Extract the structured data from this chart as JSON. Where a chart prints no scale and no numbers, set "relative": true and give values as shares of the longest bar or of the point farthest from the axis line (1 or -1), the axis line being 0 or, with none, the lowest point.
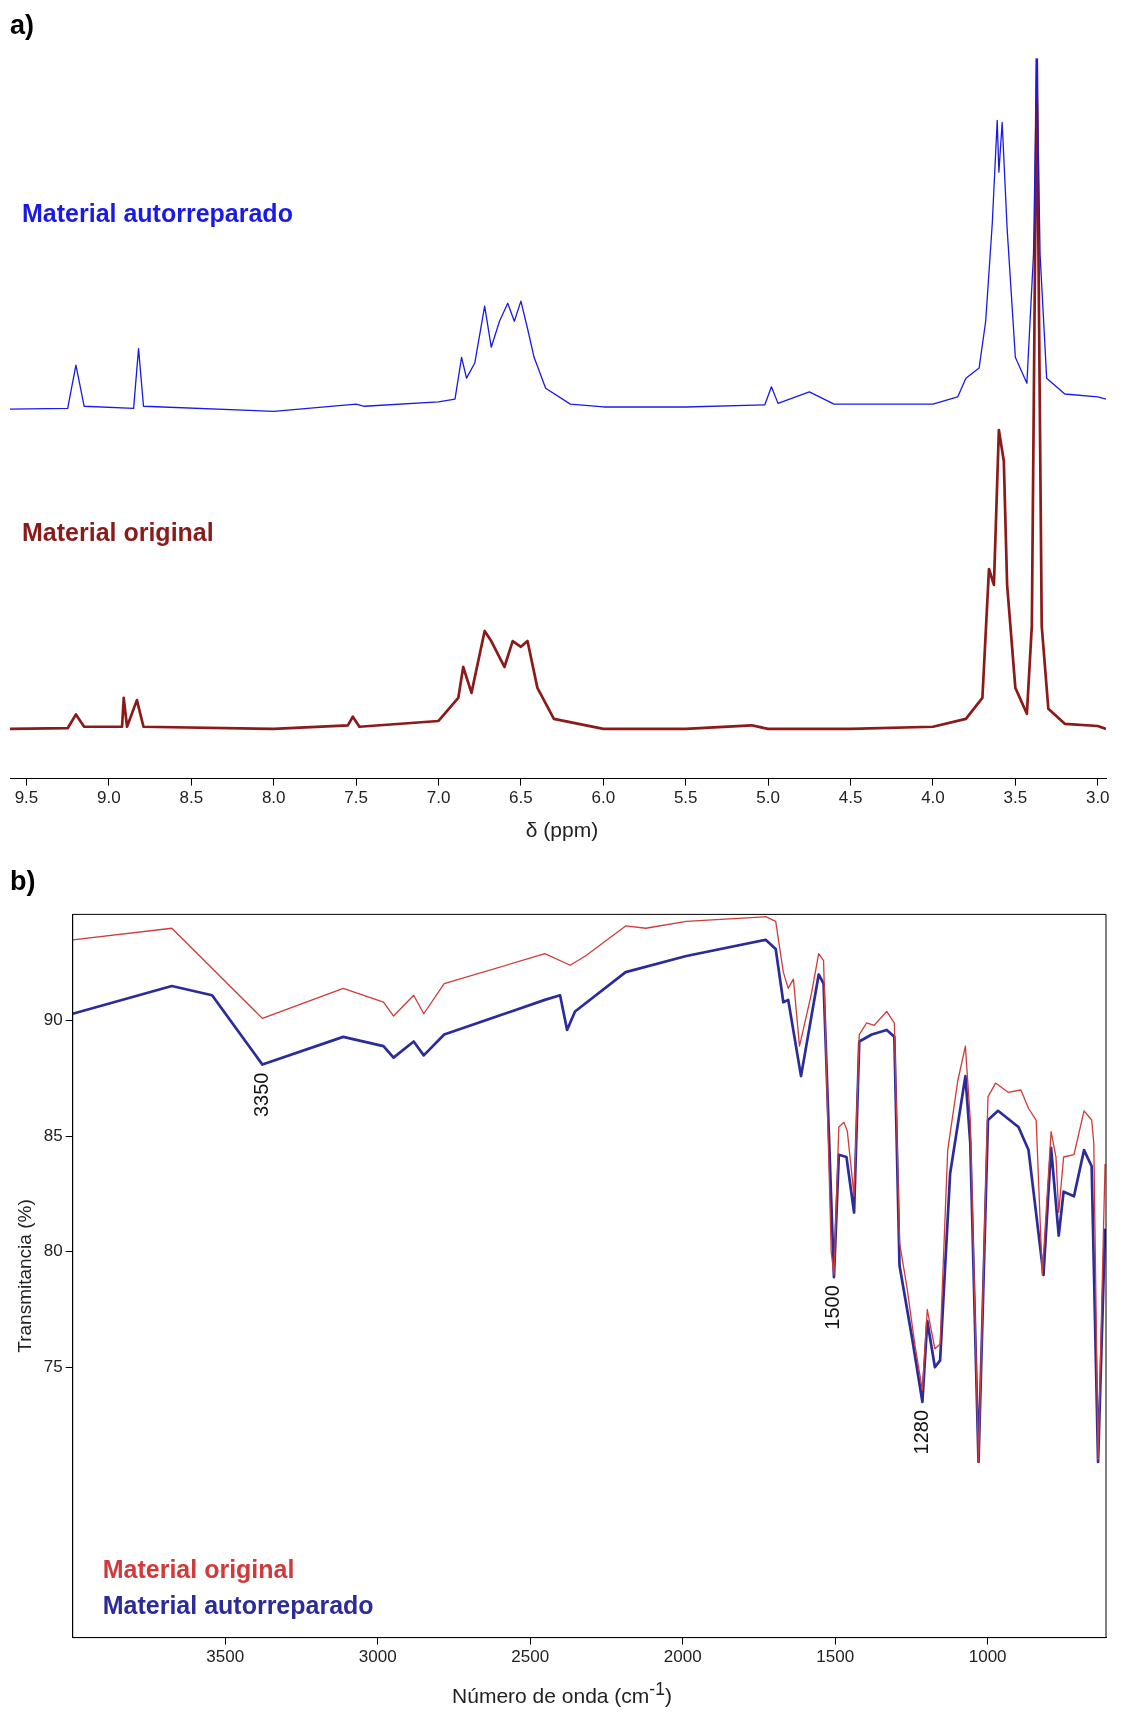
{
  "chart_data": [
    {
      "type": "line",
      "title": "a)",
      "xlabel": "δ (ppm)",
      "relative": true,
      "xlim": [
        9.6,
        2.95
      ],
      "xticks": [
        9.5,
        {
          "value": 9,
          "label": "9.0"
        },
        8.5,
        {
          "value": 8,
          "label": "8.0"
        },
        7.5,
        {
          "value": 7,
          "label": "7.0"
        },
        6.5,
        {
          "value": 6,
          "label": "6.0"
        },
        5.5,
        {
          "value": 5,
          "label": "5.0"
        },
        4.5,
        {
          "value": 4,
          "label": "4.0"
        },
        3.5,
        {
          "value": 3,
          "label": "3.0"
        }
      ],
      "grid": false,
      "legend": false,
      "marker": "none",
      "series": [
        {
          "name": "Material autorreparado",
          "color": "#1a1ae6",
          "x": [
            9.6,
            9.25,
            9.2,
            9.15,
            8.85,
            8.82,
            8.79,
            8.0,
            7.5,
            7.45,
            7.0,
            6.9,
            6.86,
            6.83,
            6.78,
            6.72,
            6.68,
            6.63,
            6.58,
            6.54,
            6.5,
            6.46,
            6.42,
            6.35,
            6.2,
            6.0,
            5.5,
            5.02,
            4.98,
            4.94,
            4.75,
            4.6,
            4.0,
            3.85,
            3.8,
            3.72,
            3.68,
            3.64,
            3.61,
            3.6,
            3.58,
            3.55,
            3.5,
            3.43,
            3.39,
            3.37,
            3.35,
            3.31,
            3.2,
            3.0,
            2.95
          ],
          "values": [
            0.513,
            0.514,
            0.574,
            0.517,
            0.514,
            0.597,
            0.517,
            0.51,
            0.52,
            0.517,
            0.523,
            0.527,
            0.585,
            0.556,
            0.577,
            0.656,
            0.599,
            0.635,
            0.66,
            0.635,
            0.663,
            0.625,
            0.585,
            0.542,
            0.52,
            0.516,
            0.516,
            0.519,
            0.544,
            0.521,
            0.537,
            0.52,
            0.52,
            0.53,
            0.556,
            0.57,
            0.635,
            0.771,
            0.914,
            0.842,
            0.911,
            0.764,
            0.585,
            0.549,
            0.728,
            1,
            0.728,
            0.556,
            0.534,
            0.53,
            0.527
          ]
        },
        {
          "name": "Material original",
          "color": "#8b1a1a",
          "x": [
            9.6,
            9.25,
            9.2,
            9.15,
            8.92,
            8.91,
            8.89,
            8.83,
            8.79,
            8.0,
            7.55,
            7.52,
            7.48,
            7.0,
            6.88,
            6.85,
            6.8,
            6.72,
            6.68,
            6.6,
            6.55,
            6.5,
            6.46,
            6.4,
            6.3,
            6.0,
            5.5,
            5.1,
            5.0,
            4.5,
            4.0,
            3.8,
            3.7,
            3.66,
            3.63,
            3.6,
            3.57,
            3.55,
            3.5,
            3.43,
            3.4,
            3.37,
            3.34,
            3.3,
            3.2,
            3.0,
            2.95
          ],
          "values": [
            0.069,
            0.07,
            0.089,
            0.072,
            0.072,
            0.112,
            0.072,
            0.109,
            0.072,
            0.069,
            0.074,
            0.086,
            0.072,
            0.08,
            0.112,
            0.155,
            0.119,
            0.205,
            0.191,
            0.155,
            0.191,
            0.183,
            0.191,
            0.126,
            0.083,
            0.069,
            0.069,
            0.074,
            0.069,
            0.069,
            0.072,
            0.083,
            0.112,
            0.291,
            0.269,
            0.484,
            0.441,
            0.269,
            0.126,
            0.09,
            0.212,
            1,
            0.212,
            0.097,
            0.076,
            0.073,
            0.069
          ]
        }
      ]
    },
    {
      "type": "line",
      "title": "b)",
      "xlabel": "Número de onda (cm$^{-1}$)",
      "ylabel": "Transmitancia (%)",
      "xlim": [
        4000,
        612
      ],
      "ylim": [
        63.3,
        94.6
      ],
      "xticks": [
        3500,
        3000,
        2500,
        2000,
        1500,
        1000
      ],
      "yticks": [
        75,
        80,
        85,
        90
      ],
      "grid": false,
      "legend": "bottom left",
      "marker": "none",
      "annotations": [
        {
          "text": "3350",
          "x": 3378,
          "y": 88.1
        },
        {
          "text": "1500",
          "x": 1504,
          "y": 78.9
        },
        {
          "text": "1280",
          "x": 1214,
          "y": 73.5
        }
      ],
      "series": [
        {
          "name": "Material original",
          "color": "#d03a3a",
          "x": [
            4000,
            3675,
            3378,
            3113,
            2981,
            2948,
            2882,
            2849,
            2782,
            2452,
            2369,
            2319,
            2187,
            2121,
            1988,
            1728,
            1695,
            1670,
            1654,
            1637,
            1617,
            1579,
            1554,
            1538,
            1513,
            1504,
            1488,
            1471,
            1460,
            1438,
            1421,
            1397,
            1372,
            1331,
            1306,
            1289,
            1264,
            1239,
            1214,
            1198,
            1173,
            1156,
            1131,
            1098,
            1073,
            1057,
            1030,
            999,
            974,
            933,
            891,
            866,
            841,
            821,
            792,
            776,
            767,
            751,
            717,
            684,
            659,
            652,
            638,
            622,
            615
          ],
          "values": [
            93.5,
            94.0,
            90.1,
            91.4,
            90.8,
            90.2,
            91.1,
            90.3,
            91.6,
            92.9,
            92.4,
            92.8,
            94.1,
            94.0,
            94.3,
            94.5,
            94.3,
            92.1,
            91.4,
            91.8,
            88.9,
            91.1,
            92.9,
            92.6,
            80.0,
            79.0,
            85.4,
            85.6,
            85.2,
            82.4,
            89.4,
            89.9,
            89.8,
            90.4,
            89.9,
            80.4,
            78.4,
            76.0,
            74.0,
            77.5,
            75.8,
            76.0,
            84.4,
            87.4,
            88.9,
            85.7,
            70.9,
            86.7,
            87.3,
            86.9,
            87.0,
            86.2,
            85.7,
            79.0,
            85.2,
            84.1,
            81.7,
            84.1,
            84.2,
            86.1,
            85.7,
            84.7,
            71.0,
            80.0,
            83.8
          ]
        },
        {
          "name": "Material autorreparado",
          "color": "#2b2b9a",
          "x": [
            4000,
            3675,
            3543,
            3378,
            3113,
            2981,
            2948,
            2882,
            2849,
            2782,
            2452,
            2402,
            2379,
            2353,
            2187,
            1988,
            1728,
            1695,
            1670,
            1654,
            1612,
            1554,
            1538,
            1504,
            1488,
            1463,
            1438,
            1421,
            1380,
            1331,
            1306,
            1289,
            1247,
            1214,
            1198,
            1173,
            1156,
            1123,
            1073,
            1057,
            1030,
            999,
            966,
            899,
            866,
            817,
            792,
            767,
            751,
            717,
            684,
            659,
            638,
            615
          ],
          "values": [
            90.3,
            91.5,
            91.1,
            88.1,
            89.3,
            88.9,
            88.4,
            89.1,
            88.5,
            89.4,
            90.9,
            91.1,
            89.6,
            90.4,
            92.1,
            92.8,
            93.5,
            93.1,
            90.8,
            90.9,
            87.6,
            92.0,
            91.6,
            78.9,
            84.2,
            84.1,
            81.7,
            89.1,
            89.4,
            89.6,
            89.3,
            79.4,
            76.2,
            73.5,
            77.0,
            75.0,
            75.3,
            83.4,
            87.6,
            84.7,
            70.9,
            85.7,
            86.1,
            85.4,
            84.4,
            79.0,
            84.5,
            80.7,
            82.6,
            82.4,
            84.4,
            83.7,
            70.9,
            81.0
          ]
        }
      ]
    }
  ]
}
